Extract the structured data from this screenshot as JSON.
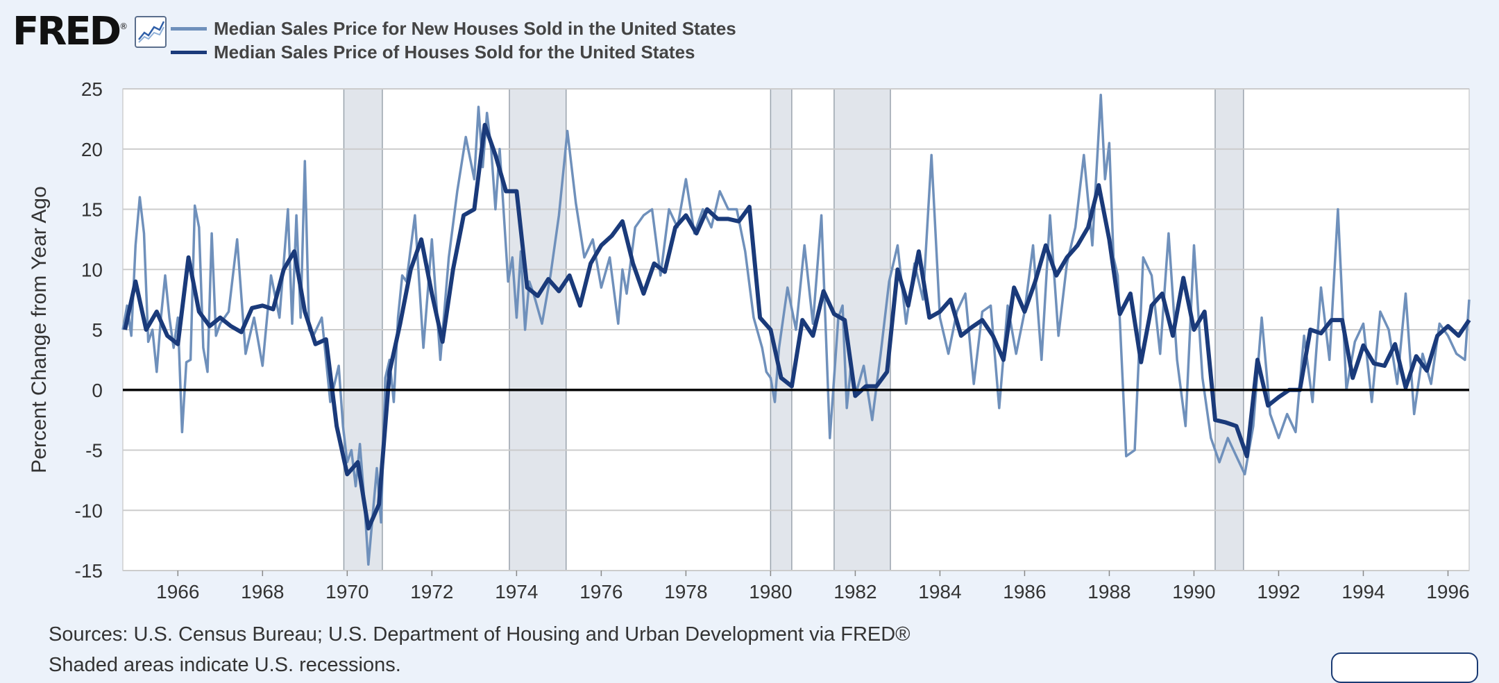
{
  "logo": {
    "text": "FRED",
    "mark": "®"
  },
  "icons": {
    "graph": "line-graph-icon"
  },
  "colors": {
    "series_new": "#6f90bb",
    "series_all": "#1a3a7a",
    "recession": "#e1e5eb",
    "plot_bg": "#ffffff",
    "page_bg": "#ecf2fa",
    "grid": "#cccccc",
    "zero_line": "#000000",
    "axis_text": "#333333"
  },
  "footer": {
    "sources": "Sources: U.S. Census Bureau; U.S. Department of Housing and Urban Development via FRED®",
    "line2": "Shaded areas indicate U.S. recessions."
  },
  "chart_data": {
    "type": "line",
    "title": "",
    "xlabel": "",
    "ylabel": "Percent Change from Year Ago",
    "xlim": [
      1964.7,
      1996.5
    ],
    "ylim": [
      -15,
      25
    ],
    "yticks": [
      25,
      20,
      15,
      10,
      5,
      0,
      -5,
      -10,
      -15
    ],
    "xticks": [
      1966,
      1968,
      1970,
      1972,
      1974,
      1976,
      1978,
      1980,
      1982,
      1984,
      1986,
      1988,
      1990,
      1992,
      1994,
      1996
    ],
    "grid": true,
    "legend_position": "top-left",
    "recessions": [
      [
        1969.92,
        1970.83
      ],
      [
        1973.83,
        1975.17
      ],
      [
        1980.0,
        1980.5
      ],
      [
        1981.5,
        1982.83
      ],
      [
        1990.5,
        1991.17
      ]
    ],
    "reference_line": 0,
    "series": [
      {
        "name": "Median Sales Price for New Houses Sold in the United States",
        "frequency": "monthly",
        "x": [
          1964.7,
          1964.8,
          1964.9,
          1965.0,
          1965.1,
          1965.2,
          1965.3,
          1965.4,
          1965.5,
          1965.6,
          1965.7,
          1965.8,
          1965.9,
          1966.0,
          1966.1,
          1966.2,
          1966.3,
          1966.4,
          1966.5,
          1966.6,
          1966.7,
          1966.8,
          1966.9,
          1967.0,
          1967.2,
          1967.4,
          1967.6,
          1967.8,
          1968.0,
          1968.2,
          1968.4,
          1968.6,
          1968.7,
          1968.8,
          1968.9,
          1969.0,
          1969.1,
          1969.2,
          1969.4,
          1969.6,
          1969.8,
          1969.9,
          1970.0,
          1970.1,
          1970.2,
          1970.3,
          1970.4,
          1970.5,
          1970.6,
          1970.7,
          1970.8,
          1970.9,
          1971.0,
          1971.1,
          1971.2,
          1971.3,
          1971.4,
          1971.6,
          1971.8,
          1972.0,
          1972.2,
          1972.4,
          1972.6,
          1972.8,
          1973.0,
          1973.1,
          1973.2,
          1973.3,
          1973.4,
          1973.5,
          1973.6,
          1973.7,
          1973.8,
          1973.9,
          1974.0,
          1974.1,
          1974.2,
          1974.3,
          1974.4,
          1974.6,
          1974.8,
          1975.0,
          1975.2,
          1975.4,
          1975.6,
          1975.8,
          1976.0,
          1976.2,
          1976.4,
          1976.5,
          1976.6,
          1976.8,
          1977.0,
          1977.2,
          1977.4,
          1977.6,
          1977.8,
          1978.0,
          1978.2,
          1978.4,
          1978.6,
          1978.8,
          1979.0,
          1979.2,
          1979.4,
          1979.6,
          1979.8,
          1979.9,
          1980.0,
          1980.1,
          1980.2,
          1980.4,
          1980.6,
          1980.8,
          1981.0,
          1981.2,
          1981.4,
          1981.6,
          1981.7,
          1981.8,
          1981.9,
          1982.0,
          1982.2,
          1982.4,
          1982.6,
          1982.8,
          1983.0,
          1983.2,
          1983.4,
          1983.6,
          1983.8,
          1984.0,
          1984.2,
          1984.4,
          1984.6,
          1984.8,
          1985.0,
          1985.2,
          1985.4,
          1985.6,
          1985.8,
          1986.0,
          1986.2,
          1986.4,
          1986.6,
          1986.8,
          1987.0,
          1987.2,
          1987.4,
          1987.6,
          1987.8,
          1987.9,
          1988.0,
          1988.1,
          1988.2,
          1988.4,
          1988.6,
          1988.8,
          1989.0,
          1989.2,
          1989.4,
          1989.6,
          1989.8,
          1990.0,
          1990.2,
          1990.4,
          1990.6,
          1990.8,
          1991.0,
          1991.2,
          1991.4,
          1991.6,
          1991.8,
          1992.0,
          1992.2,
          1992.4,
          1992.6,
          1992.8,
          1993.0,
          1993.2,
          1993.4,
          1993.6,
          1993.8,
          1994.0,
          1994.2,
          1994.4,
          1994.6,
          1994.8,
          1995.0,
          1995.2,
          1995.4,
          1995.6,
          1995.8,
          1996.0,
          1996.2,
          1996.4,
          1996.5
        ],
        "values": [
          5,
          7,
          4.5,
          12,
          16,
          13,
          4,
          5,
          1.5,
          6,
          9.5,
          6,
          3.5,
          6,
          -3.5,
          2.3,
          2.5,
          15.3,
          13.5,
          3.5,
          1.5,
          13,
          4.5,
          5.5,
          6.5,
          12.5,
          3,
          6,
          2,
          9.5,
          6,
          15,
          5.5,
          14.5,
          6,
          19,
          5,
          4.5,
          6,
          -1,
          2,
          -3,
          -6,
          -5,
          -8,
          -4.5,
          -9,
          -14.5,
          -10.5,
          -6.5,
          -11,
          1,
          2.5,
          -1,
          6,
          9.5,
          9,
          14.5,
          3.5,
          12.5,
          2.5,
          11,
          16.5,
          21,
          17.5,
          23.5,
          18.5,
          23,
          20,
          15,
          20,
          14.5,
          9,
          11,
          6,
          11.5,
          5,
          9,
          8,
          5.5,
          9.5,
          14.5,
          21.5,
          15.5,
          11,
          12.5,
          8.5,
          11,
          5.5,
          10,
          8,
          13.5,
          14.5,
          15,
          9.5,
          15,
          13.5,
          17.5,
          13,
          15,
          13.5,
          16.5,
          15,
          15,
          11.5,
          6,
          3.5,
          1.5,
          1,
          -1,
          3.5,
          8.5,
          5,
          12,
          5.5,
          14.5,
          -4,
          6,
          7,
          -1.5,
          2,
          -0.5,
          2,
          -2.5,
          3,
          9,
          12,
          5.5,
          10.5,
          7.5,
          19.5,
          6,
          3,
          6.5,
          8,
          0.5,
          6.5,
          7,
          -1.5,
          7,
          3,
          6.5,
          12,
          2.5,
          14.5,
          4.5,
          10.5,
          13.5,
          19.5,
          12,
          24.5,
          17.5,
          20.5,
          11,
          9.5,
          -5.5,
          -5,
          11,
          9.5,
          3,
          13,
          2.5,
          -3,
          12,
          1,
          -4,
          -6,
          -4,
          -5.5,
          -7,
          -3,
          6,
          -2,
          -4,
          -2,
          -3.5,
          4.5,
          -1,
          8.5,
          2.5,
          15,
          0,
          4,
          5.5,
          -1,
          6.5,
          5,
          0.5,
          8,
          -2,
          3,
          0.5,
          5.5,
          4.5,
          3,
          2.5,
          7.5
        ]
      },
      {
        "name": "Median Sales Price of Houses Sold for the United States",
        "frequency": "quarterly",
        "x": [
          1964.75,
          1965.0,
          1965.25,
          1965.5,
          1965.75,
          1966.0,
          1966.25,
          1966.5,
          1966.75,
          1967.0,
          1967.25,
          1967.5,
          1967.75,
          1968.0,
          1968.25,
          1968.5,
          1968.75,
          1969.0,
          1969.25,
          1969.5,
          1969.75,
          1970.0,
          1970.25,
          1970.5,
          1970.75,
          1971.0,
          1971.25,
          1971.5,
          1971.75,
          1972.0,
          1972.25,
          1972.5,
          1972.75,
          1973.0,
          1973.25,
          1973.5,
          1973.75,
          1974.0,
          1974.25,
          1974.5,
          1974.75,
          1975.0,
          1975.25,
          1975.5,
          1975.75,
          1976.0,
          1976.25,
          1976.5,
          1976.75,
          1977.0,
          1977.25,
          1977.5,
          1977.75,
          1978.0,
          1978.25,
          1978.5,
          1978.75,
          1979.0,
          1979.25,
          1979.5,
          1979.75,
          1980.0,
          1980.25,
          1980.5,
          1980.75,
          1981.0,
          1981.25,
          1981.5,
          1981.75,
          1982.0,
          1982.25,
          1982.5,
          1982.75,
          1983.0,
          1983.25,
          1983.5,
          1983.75,
          1984.0,
          1984.25,
          1984.5,
          1984.75,
          1985.0,
          1985.25,
          1985.5,
          1985.75,
          1986.0,
          1986.25,
          1986.5,
          1986.75,
          1987.0,
          1987.25,
          1987.5,
          1987.75,
          1988.0,
          1988.25,
          1988.5,
          1988.75,
          1989.0,
          1989.25,
          1989.5,
          1989.75,
          1990.0,
          1990.25,
          1990.5,
          1990.75,
          1991.0,
          1991.25,
          1991.5,
          1991.75,
          1992.0,
          1992.25,
          1992.5,
          1992.75,
          1993.0,
          1993.25,
          1993.5,
          1993.75,
          1994.0,
          1994.25,
          1994.5,
          1994.75,
          1995.0,
          1995.25,
          1995.5,
          1995.75,
          1996.0,
          1996.25,
          1996.5
        ],
        "values": [
          5,
          9,
          5,
          6.5,
          4.5,
          3.8,
          11,
          6.5,
          5.3,
          6,
          5.3,
          4.8,
          6.8,
          7,
          6.7,
          10,
          11.5,
          6.5,
          3.8,
          4.2,
          -3,
          -7,
          -6,
          -11.5,
          -9.5,
          1.5,
          5.5,
          10,
          12.5,
          8,
          4,
          10,
          14.5,
          15,
          22,
          19.5,
          16.5,
          16.5,
          8.5,
          7.8,
          9.2,
          8.2,
          9.5,
          7,
          10.5,
          12,
          12.8,
          14,
          10.5,
          8,
          10.5,
          9.8,
          13.5,
          14.5,
          13,
          15,
          14.2,
          14.2,
          14,
          15.2,
          6,
          5,
          1,
          0.3,
          5.8,
          4.5,
          8.2,
          6.3,
          5.8,
          -0.5,
          0.3,
          0.3,
          1.5,
          10,
          7,
          11.5,
          6,
          6.5,
          7.5,
          4.5,
          5.2,
          5.8,
          4.5,
          2.5,
          8.5,
          6.5,
          9,
          12,
          9.5,
          11,
          12,
          13.5,
          17,
          12.5,
          6.3,
          8,
          2.3,
          7,
          8,
          4.5,
          9.3,
          5,
          6.5,
          -2.5,
          -2.7,
          -3,
          -5.5,
          2.5,
          -1.3,
          -0.6,
          0,
          0,
          5,
          4.7,
          5.8,
          5.8,
          1,
          3.7,
          2.2,
          2,
          3.8,
          0.2,
          2.8,
          1.6,
          4.5,
          5.3,
          4.5,
          5.8
        ]
      }
    ]
  }
}
